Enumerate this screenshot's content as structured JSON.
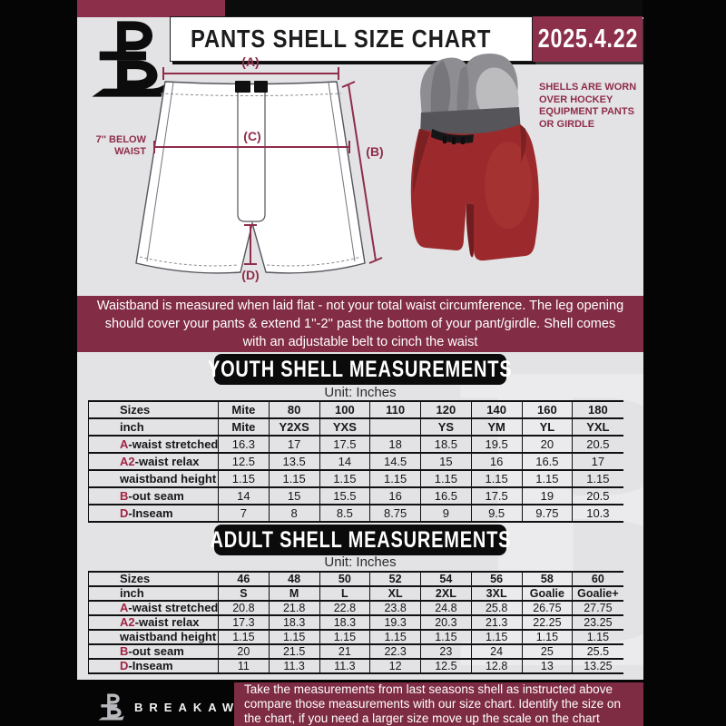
{
  "header": {
    "title": "PANTS SHELL SIZE CHART",
    "date": "2025.4.22",
    "logo": "breakaway-b-logo"
  },
  "diagram": {
    "label_a": "(A)",
    "label_b": "(B)",
    "label_c": "(C)",
    "label_d": "(D)",
    "waist_note": "7'' BELOW WAIST",
    "shell_note": "SHELLS ARE WORN OVER HOCKEY EQUIPMENT PANTS OR GIRDLE"
  },
  "info_banner": {
    "text": "Waistband is measured when laid flat - not your total waist circumference. The leg opening should cover your pants & extend 1''-2'' past the bottom of your pant/girdle. Shell comes with an adjustable belt to cinch the waist"
  },
  "youth": {
    "heading": "YOUTH SHELL MEASUREMENTS",
    "unit_label": "Unit: Inches",
    "rows": [
      {
        "prefix": "",
        "label": "Sizes",
        "bold": true,
        "values": [
          "Mite",
          "80",
          "100",
          "110",
          "120",
          "140",
          "160",
          "180"
        ]
      },
      {
        "prefix": "",
        "label": "inch",
        "bold": true,
        "values": [
          "Mite",
          "Y2XS",
          "YXS",
          "",
          "YS",
          "YM",
          "YL",
          "YXL"
        ]
      },
      {
        "prefix": "A",
        "label": "-waist stretched",
        "values": [
          "16.3",
          "17",
          "17.5",
          "18",
          "18.5",
          "19.5",
          "20",
          "20.5"
        ]
      },
      {
        "prefix": "A2",
        "label": "-waist relax",
        "values": [
          "12.5",
          "13.5",
          "14",
          "14.5",
          "15",
          "16",
          "16.5",
          "17"
        ]
      },
      {
        "prefix": "",
        "label": "waistband height",
        "values": [
          "1.15",
          "1.15",
          "1.15",
          "1.15",
          "1.15",
          "1.15",
          "1.15",
          "1.15"
        ]
      },
      {
        "prefix": "B",
        "label": "-out seam",
        "values": [
          "14",
          "15",
          "15.5",
          "16",
          "16.5",
          "17.5",
          "19",
          "20.5"
        ]
      },
      {
        "prefix": "D",
        "label": "-Inseam",
        "values": [
          "7",
          "8",
          "8.5",
          "8.75",
          "9",
          "9.5",
          "9.75",
          "10.3"
        ]
      }
    ]
  },
  "adult": {
    "heading": "ADULT SHELL MEASUREMENTS",
    "unit_label": "Unit: Inches",
    "rows": [
      {
        "prefix": "",
        "label": "Sizes",
        "bold": true,
        "values": [
          "46",
          "48",
          "50",
          "52",
          "54",
          "56",
          "58",
          "60"
        ]
      },
      {
        "prefix": "",
        "label": "inch",
        "bold": true,
        "values": [
          "S",
          "M",
          "L",
          "XL",
          "2XL",
          "3XL",
          "Goalie",
          "Goalie+"
        ]
      },
      {
        "prefix": "A",
        "label": "-waist stretched",
        "values": [
          "20.8",
          "21.8",
          "22.8",
          "23.8",
          "24.8",
          "25.8",
          "26.75",
          "27.75"
        ]
      },
      {
        "prefix": "A2",
        "label": "-waist relax",
        "values": [
          "17.3",
          "18.3",
          "18.3",
          "19.3",
          "20.3",
          "21.3",
          "22.25",
          "23.25"
        ]
      },
      {
        "prefix": "",
        "label": "waistband height",
        "values": [
          "1.15",
          "1.15",
          "1.15",
          "1.15",
          "1.15",
          "1.15",
          "1.15",
          "1.15"
        ]
      },
      {
        "prefix": "B",
        "label": "-out seam",
        "values": [
          "20",
          "21.5",
          "21",
          "22.3",
          "23",
          "24",
          "25",
          "25.5"
        ]
      },
      {
        "prefix": "D",
        "label": "-Inseam",
        "values": [
          "11",
          "11.3",
          "11.3",
          "12",
          "12.5",
          "12.8",
          "13",
          "13.25"
        ]
      }
    ]
  },
  "footer": {
    "brand": "BREAKAWAY",
    "text": "Take the measurements from last seasons shell as instructed above compare those measurements  with our size chart. Identify the size on the chart, if you need a larger size move up the scale on the chart"
  },
  "colors": {
    "maroon_banner": "#822c46",
    "maroon_bright": "#8c2f4b",
    "maroon_footer": "#7e2b44",
    "accent_letter": "#a02545",
    "measure_line": "#8e2d49",
    "shell_red": "#9c2a2c",
    "page_gray": "#e3e3e5",
    "box_black": "#0b0b0b"
  },
  "watermark": {
    "glyph": "B"
  }
}
